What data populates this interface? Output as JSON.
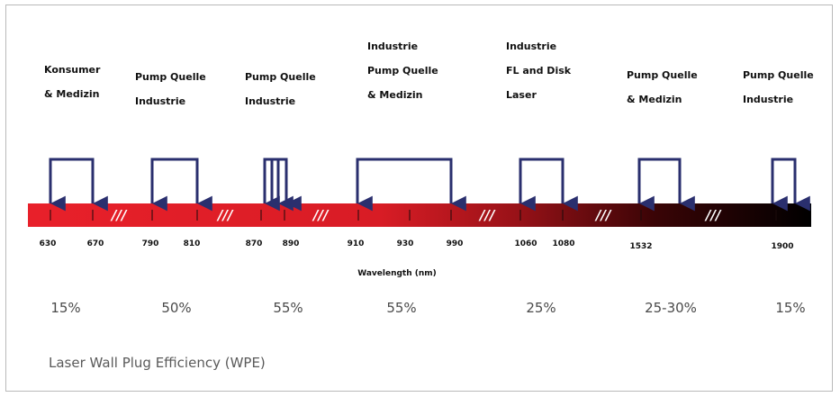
{
  "applications": [
    {
      "id": "konsumer",
      "label": "Konsumer\n& Medizin"
    },
    {
      "id": "pump1",
      "label": "Pump Quelle\nIndustrie"
    },
    {
      "id": "pump2",
      "label": "Pump Quelle\nIndustrie"
    },
    {
      "id": "industrie-pump",
      "label": "Industrie\nPump Quelle\n& Medizin"
    },
    {
      "id": "industrie-fl",
      "label": "Industrie\nFL and Disk\nLaser"
    },
    {
      "id": "pump-medizin",
      "label": "Pump Quelle\n& Medizin"
    },
    {
      "id": "pump-industrie",
      "label": "Pump Quelle\nIndustrie"
    }
  ],
  "wavelength_ticks": [
    "630",
    "670",
    "790",
    "810",
    "870",
    "890",
    "910",
    "930",
    "990",
    "1060",
    "1080",
    "1532",
    "1900"
  ],
  "axis_label": "Wavelength (nm)",
  "break_marks": [
    "///",
    "///",
    "///",
    "///",
    "///",
    "///",
    "///"
  ],
  "efficiencies": [
    "15%",
    "50%",
    "55%",
    "55%",
    "25%",
    "25-30%",
    "15%"
  ],
  "footer": "Laser Wall Plug Efficiency  (WPE)",
  "colors": {
    "bar_start": "#e8202a",
    "bar_mid": "#c0161d",
    "bar_end": "#0a0000",
    "bracket": "#2a2f6e"
  }
}
